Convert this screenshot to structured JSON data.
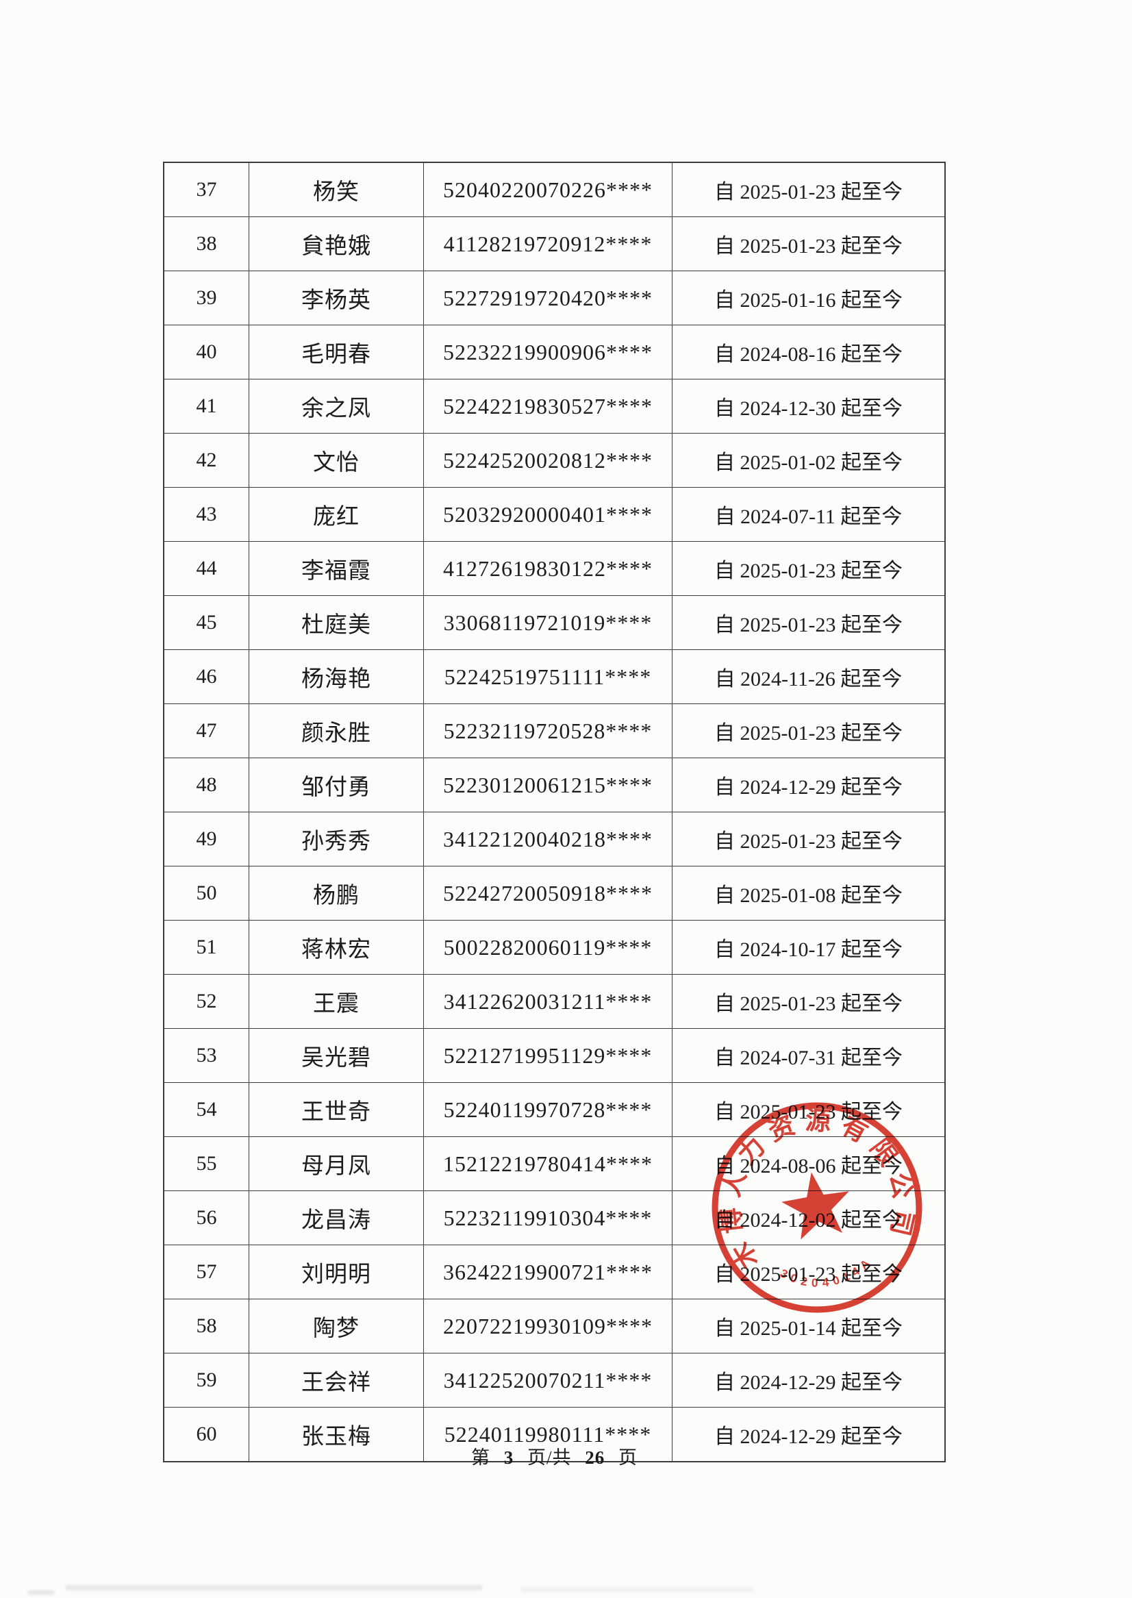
{
  "table": {
    "rows": [
      {
        "no": "37",
        "name": "杨笑",
        "id": "52040220070226****",
        "period": "自 2025-01-23 起至今"
      },
      {
        "no": "38",
        "name": "貟艳娥",
        "id": "41128219720912****",
        "period": "自 2025-01-23 起至今"
      },
      {
        "no": "39",
        "name": "李杨英",
        "id": "52272919720420****",
        "period": "自 2025-01-16 起至今"
      },
      {
        "no": "40",
        "name": "毛明春",
        "id": "52232219900906****",
        "period": "自 2024-08-16 起至今"
      },
      {
        "no": "41",
        "name": "余之凤",
        "id": "52242219830527****",
        "period": "自 2024-12-30 起至今"
      },
      {
        "no": "42",
        "name": "文怡",
        "id": "52242520020812****",
        "period": "自 2025-01-02 起至今"
      },
      {
        "no": "43",
        "name": "庞红",
        "id": "52032920000401****",
        "period": "自 2024-07-11 起至今"
      },
      {
        "no": "44",
        "name": "李福霞",
        "id": "41272619830122****",
        "period": "自 2025-01-23 起至今"
      },
      {
        "no": "45",
        "name": "杜庭美",
        "id": "33068119721019****",
        "period": "自 2025-01-23 起至今"
      },
      {
        "no": "46",
        "name": "杨海艳",
        "id": "52242519751111****",
        "period": "自 2024-11-26 起至今"
      },
      {
        "no": "47",
        "name": "颜永胜",
        "id": "52232119720528****",
        "period": "自 2025-01-23 起至今"
      },
      {
        "no": "48",
        "name": "邹付勇",
        "id": "52230120061215****",
        "period": "自 2024-12-29 起至今"
      },
      {
        "no": "49",
        "name": "孙秀秀",
        "id": "34122120040218****",
        "period": "自 2025-01-23 起至今"
      },
      {
        "no": "50",
        "name": "杨鹏",
        "id": "52242720050918****",
        "period": "自 2025-01-08 起至今"
      },
      {
        "no": "51",
        "name": "蒋林宏",
        "id": "50022820060119****",
        "period": "自 2024-10-17 起至今"
      },
      {
        "no": "52",
        "name": "王震",
        "id": "34122620031211****",
        "period": "自 2025-01-23 起至今"
      },
      {
        "no": "53",
        "name": "吴光碧",
        "id": "52212719951129****",
        "period": "自 2024-07-31 起至今"
      },
      {
        "no": "54",
        "name": "王世奇",
        "id": "52240119970728****",
        "period": "自 2025-01-23 起至今"
      },
      {
        "no": "55",
        "name": "母月凤",
        "id": "15212219780414****",
        "period": "自 2024-08-06 起至今"
      },
      {
        "no": "56",
        "name": "龙昌涛",
        "id": "52232119910304****",
        "period": "自 2024-12-02 起至今"
      },
      {
        "no": "57",
        "name": "刘明明",
        "id": "36242219900721****",
        "period": "自 2025-01-23 起至今"
      },
      {
        "no": "58",
        "name": "陶梦",
        "id": "22072219930109****",
        "period": "自 2025-01-14 起至今"
      },
      {
        "no": "59",
        "name": "王会祥",
        "id": "34122520070211****",
        "period": "自 2024-12-29 起至今"
      },
      {
        "no": "60",
        "name": "张玉梅",
        "id": "52240119980111****",
        "period": "自 2024-12-29 起至今"
      }
    ]
  },
  "stamp": {
    "ring_text": "木博人力资源有限公司",
    "code": "30204014A",
    "color": "#d63226"
  },
  "footer": {
    "prefix": "第",
    "page": "3",
    "mid": "页/共",
    "total": "26",
    "suffix": "页"
  }
}
